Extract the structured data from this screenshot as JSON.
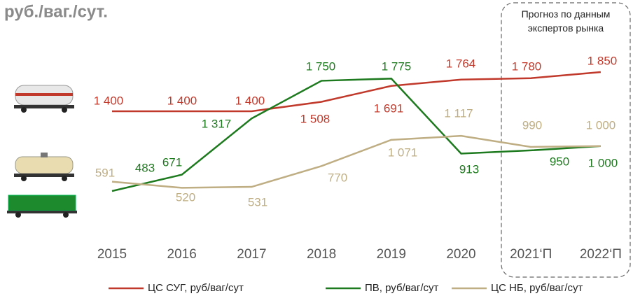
{
  "chart_data": {
    "type": "line",
    "title": "руб./ваг./сут.",
    "annotation": "Прогноз по данным экспертов рынка",
    "categories": [
      "2015",
      "2016",
      "2017",
      "2018",
      "2019",
      "2020",
      "2021‘П",
      "2022‘П"
    ],
    "series": [
      {
        "name": "ЦС СУГ, руб/ваг/сут",
        "color": "#c0392b",
        "values": [
          1400,
          1400,
          1400,
          1508,
          1691,
          1764,
          1780,
          1850
        ],
        "value_labels": [
          "1 400",
          "1 400",
          "1 400",
          "1 508",
          "1 691",
          "1 764",
          "1 780",
          "1 850"
        ]
      },
      {
        "name": "ПВ, руб/ваг/сут",
        "color": "#1e7a1e",
        "values": [
          483,
          671,
          1317,
          1750,
          1775,
          913,
          950,
          1000
        ],
        "value_labels": [
          "483",
          "671",
          "1 317",
          "1 750",
          "1 775",
          "913",
          "950",
          "1 000"
        ]
      },
      {
        "name": "ЦС НБ, руб/ваг/сут",
        "color": "#bfae84",
        "values": [
          591,
          520,
          531,
          770,
          1071,
          1117,
          990,
          1000
        ],
        "value_labels": [
          "591",
          "520",
          "531",
          "770",
          "1 071",
          "1 117",
          "990",
          "1 000"
        ]
      }
    ]
  }
}
